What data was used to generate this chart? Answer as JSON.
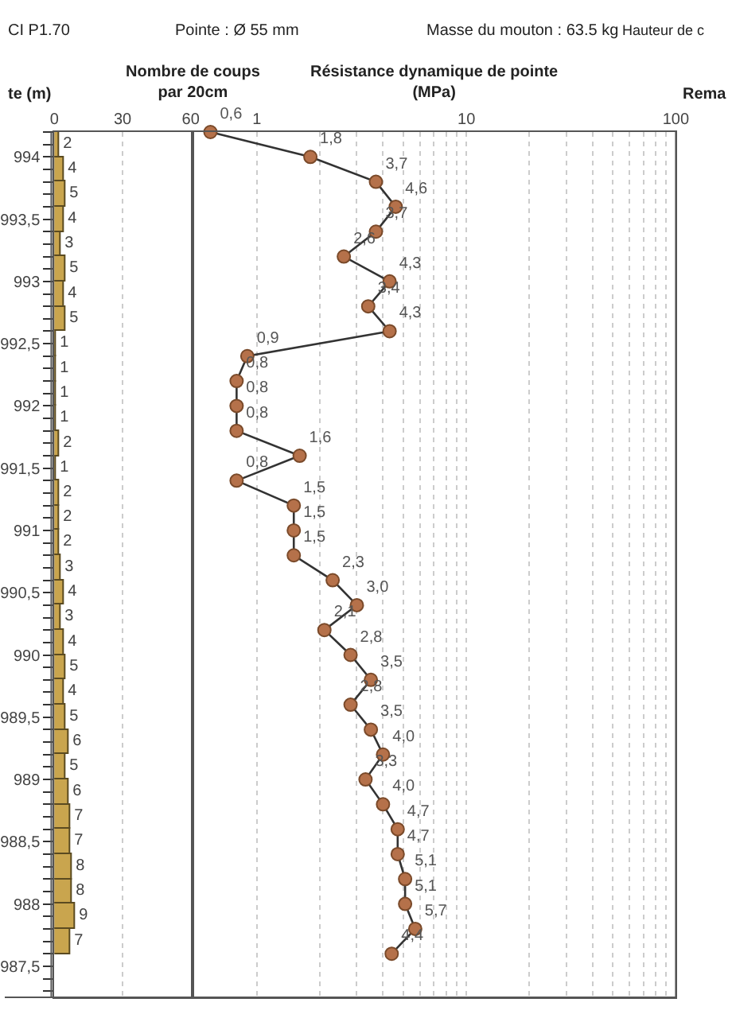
{
  "chart_data": [
    {
      "type": "bar",
      "orientation": "horizontal",
      "title": "Nombre de coups\npar 20cm",
      "ylabel": "te (m)",
      "annotations": [
        "CI P1.70",
        "Pointe : Ø 55 mm",
        "Masse du mouton : 63.5 kg",
        "Hauteur de c",
        "Rema"
      ],
      "x": [
        994.1,
        993.9,
        993.7,
        993.5,
        993.3,
        993.1,
        992.9,
        992.7,
        992.5,
        992.3,
        992.1,
        991.9,
        991.7,
        991.5,
        991.3,
        991.1,
        990.9,
        990.7,
        990.5,
        990.3,
        990.1,
        989.9,
        989.7,
        989.5,
        989.3,
        989.1,
        988.9,
        988.7,
        988.5,
        988.3,
        988.1,
        987.9,
        987.7
      ],
      "values": [
        2,
        4,
        5,
        4,
        3,
        5,
        4,
        5,
        1,
        1,
        1,
        1,
        2,
        1,
        2,
        2,
        2,
        3,
        4,
        3,
        4,
        5,
        4,
        5,
        6,
        5,
        6,
        7,
        7,
        8,
        8,
        9,
        7
      ],
      "color": "#c9a54e",
      "data_labels": true,
      "xlim": [
        0,
        60
      ],
      "xticks": [
        0,
        30,
        60
      ],
      "ylim": [
        987.25,
        994.2
      ],
      "yticks": [
        {
          "value": 994.2,
          "label": null
        },
        {
          "value": 994.1,
          "label": null
        },
        {
          "value": 994,
          "label": "994"
        },
        {
          "value": 993.9,
          "label": null
        },
        {
          "value": 993.8,
          "label": null
        },
        {
          "value": 993.7,
          "label": null
        },
        {
          "value": 993.6,
          "label": null
        },
        {
          "value": 993.5,
          "label": "993,5"
        },
        {
          "value": 993.4,
          "label": null
        },
        {
          "value": 993.3,
          "label": null
        },
        {
          "value": 993.2,
          "label": null
        },
        {
          "value": 993.1,
          "label": null
        },
        {
          "value": 993,
          "label": "993"
        },
        {
          "value": 992.9,
          "label": null
        },
        {
          "value": 992.8,
          "label": null
        },
        {
          "value": 992.7,
          "label": null
        },
        {
          "value": 992.6,
          "label": null
        },
        {
          "value": 992.5,
          "label": "992,5"
        },
        {
          "value": 992.4,
          "label": null
        },
        {
          "value": 992.3,
          "label": null
        },
        {
          "value": 992.2,
          "label": null
        },
        {
          "value": 992.1,
          "label": null
        },
        {
          "value": 992,
          "label": "992"
        },
        {
          "value": 991.9,
          "label": null
        },
        {
          "value": 991.8,
          "label": null
        },
        {
          "value": 991.7,
          "label": null
        },
        {
          "value": 991.6,
          "label": null
        },
        {
          "value": 991.5,
          "label": "991,5"
        },
        {
          "value": 991.4,
          "label": null
        },
        {
          "value": 991.3,
          "label": null
        },
        {
          "value": 991.2,
          "label": null
        },
        {
          "value": 991.1,
          "label": null
        },
        {
          "value": 991,
          "label": "991"
        },
        {
          "value": 990.9,
          "label": null
        },
        {
          "value": 990.8,
          "label": null
        },
        {
          "value": 990.7,
          "label": null
        },
        {
          "value": 990.6,
          "label": null
        },
        {
          "value": 990.5,
          "label": "990,5"
        },
        {
          "value": 990.4,
          "label": null
        },
        {
          "value": 990.3,
          "label": null
        },
        {
          "value": 990.2,
          "label": null
        },
        {
          "value": 990.1,
          "label": null
        },
        {
          "value": 990,
          "label": "990"
        },
        {
          "value": 989.9,
          "label": null
        },
        {
          "value": 989.8,
          "label": null
        },
        {
          "value": 989.7,
          "label": null
        },
        {
          "value": 989.6,
          "label": null
        },
        {
          "value": 989.5,
          "label": "989,5"
        },
        {
          "value": 989.4,
          "label": null
        },
        {
          "value": 989.3,
          "label": null
        },
        {
          "value": 989.2,
          "label": null
        },
        {
          "value": 989.1,
          "label": null
        },
        {
          "value": 989,
          "label": "989"
        },
        {
          "value": 988.9,
          "label": null
        },
        {
          "value": 988.8,
          "label": null
        },
        {
          "value": 988.7,
          "label": null
        },
        {
          "value": 988.6,
          "label": null
        },
        {
          "value": 988.5,
          "label": "988,5"
        },
        {
          "value": 988.4,
          "label": null
        },
        {
          "value": 988.3,
          "label": null
        },
        {
          "value": 988.2,
          "label": null
        },
        {
          "value": 988.1,
          "label": null
        },
        {
          "value": 988,
          "label": "988"
        },
        {
          "value": 987.9,
          "label": null
        },
        {
          "value": 987.8,
          "label": null
        },
        {
          "value": 987.7,
          "label": null
        },
        {
          "value": 987.6,
          "label": null
        },
        {
          "value": 987.5,
          "label": "987,5"
        },
        {
          "value": 987.4,
          "label": null
        },
        {
          "value": 987.3,
          "label": null
        }
      ],
      "grid": "x"
    },
    {
      "type": "line",
      "title": "Résistance dynamique de pointe\n(MPa)",
      "log": "x",
      "orientation": "horizontal",
      "x": [
        994.2,
        994.0,
        993.8,
        993.6,
        993.4,
        993.2,
        993.0,
        992.8,
        992.6,
        992.4,
        992.2,
        992.0,
        991.8,
        991.6,
        991.4,
        991.2,
        991.0,
        990.8,
        990.6,
        990.4,
        990.2,
        990.0,
        989.8,
        989.6,
        989.4,
        989.2,
        989.0,
        988.8,
        988.6,
        988.4,
        988.2,
        988.0,
        987.8,
        987.6
      ],
      "values": [
        0.6,
        1.8,
        3.7,
        4.6,
        3.7,
        2.6,
        4.3,
        3.4,
        4.3,
        0.9,
        0.8,
        0.8,
        0.8,
        1.6,
        0.8,
        1.5,
        1.5,
        1.5,
        2.3,
        3.0,
        2.1,
        2.8,
        3.5,
        2.8,
        3.5,
        4.0,
        3.3,
        4.0,
        4.7,
        4.7,
        5.1,
        5.1,
        5.7,
        4.4
      ],
      "value_labels": [
        "0,6",
        "1,8",
        "3,7",
        "4,6",
        "3,7",
        "2,6",
        "4,3",
        "3,4",
        "4,3",
        "0,9",
        "0,8",
        "0,8",
        "0,8",
        "1,6",
        "0,8",
        "1,5",
        "1,5",
        "1,5",
        "2,3",
        "3,0",
        "2,1",
        "2,8",
        "3,5",
        "2,8",
        "3,5",
        "4,0",
        "3,3",
        "4,0",
        "4,7",
        "4,7",
        "5,1",
        "5,1",
        "5,7",
        "4,4"
      ],
      "color": "#333333",
      "colors": [
        "#b5714a",
        "#b5714a",
        "#b5714a",
        "#b5714a",
        "#b5714a",
        "#b5714a",
        "#b5714a",
        "#b5714a",
        "#b5714a",
        "#b5714a",
        "#b5714a",
        "#b5714a",
        "#b5714a",
        "#b5714a",
        "#b5714a",
        "#b5714a",
        "#b5714a",
        "#b5714a",
        "#b5714a",
        "#b5714a",
        "#b5714a",
        "#b5714a",
        "#b5714a",
        "#b5714a",
        "#b5714a",
        "#b5714a",
        "#b5714a",
        "#b5714a",
        "#b5714a",
        "#b5714a",
        "#b5714a",
        "#b5714a",
        "#b5714a",
        "#b5714a"
      ],
      "marker": "circle",
      "line_style": "solid",
      "xlim": [
        0.5,
        100
      ],
      "xticks": [
        1,
        {
          "value": 2,
          "label": null
        },
        {
          "value": 3,
          "label": null
        },
        {
          "value": 4,
          "label": null
        },
        {
          "value": 5,
          "label": null
        },
        {
          "value": 6,
          "label": null
        },
        {
          "value": 7,
          "label": null
        },
        {
          "value": 8,
          "label": null
        },
        {
          "value": 9,
          "label": null
        },
        10,
        {
          "value": 20,
          "label": null
        },
        {
          "value": 30,
          "label": null
        },
        {
          "value": 40,
          "label": null
        },
        {
          "value": 50,
          "label": null
        },
        {
          "value": 60,
          "label": null
        },
        {
          "value": 70,
          "label": null
        },
        {
          "value": 80,
          "label": null
        },
        {
          "value": 90,
          "label": null
        },
        100
      ],
      "ylim": [
        987.25,
        994.2
      ],
      "tick_labels": "x",
      "grid": "x"
    }
  ]
}
